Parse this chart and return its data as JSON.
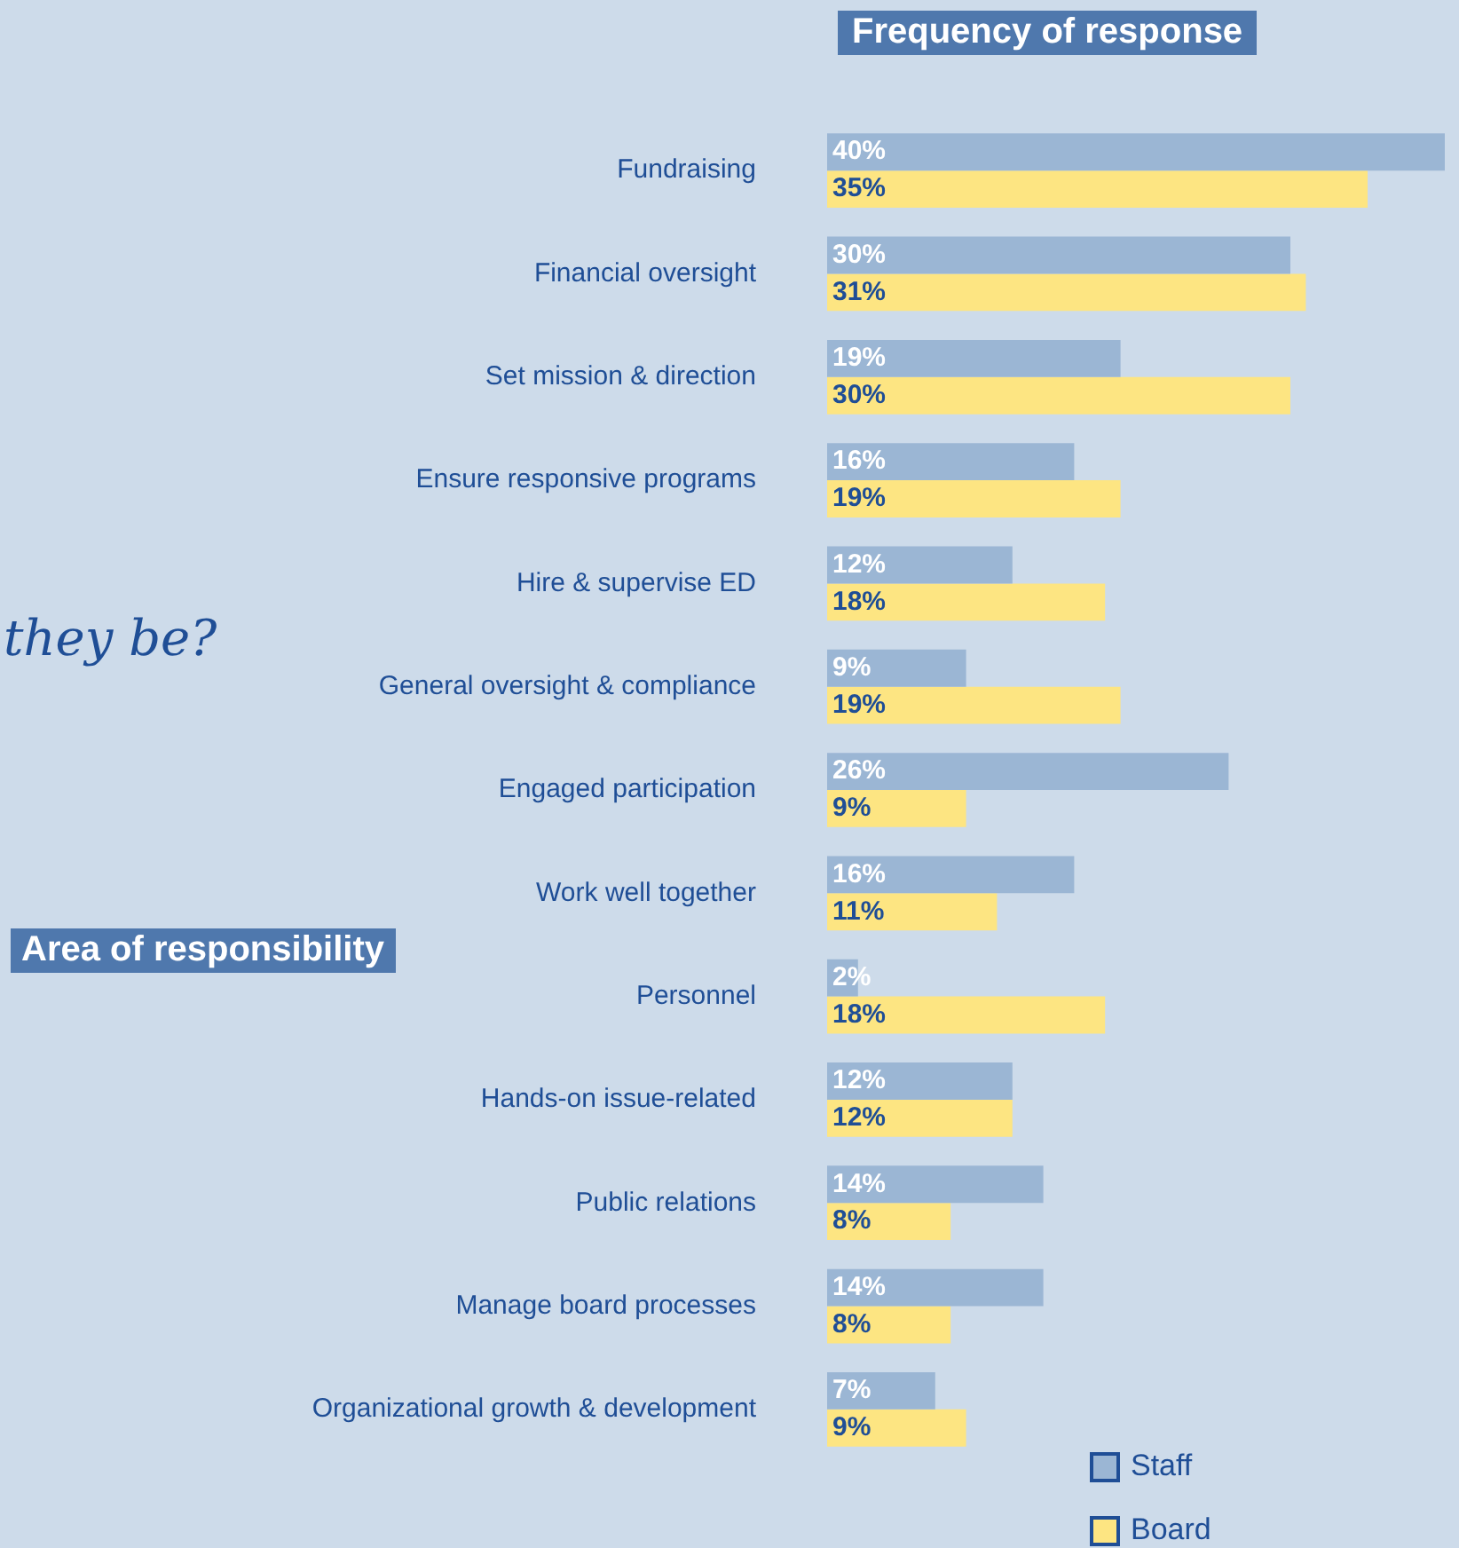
{
  "chart_data": {
    "type": "bar",
    "orientation": "horizontal",
    "title": "Frequency of response",
    "ylabel": "Area of responsibility",
    "annotations": [
      "they be?"
    ],
    "categories": [
      "Fundraising",
      "Financial oversight",
      "Set mission & direction",
      "Ensure responsive programs",
      "Hire & supervise ED",
      "General oversight & compliance",
      "Engaged participation",
      "Work well together",
      "Personnel",
      "Hands-on issue-related",
      "Public relations",
      "Manage board processes",
      "Organizational growth & development"
    ],
    "series": [
      {
        "name": "Staff",
        "color": "#9bb6d4",
        "values": [
          40,
          30,
          19,
          16,
          12,
          9,
          26,
          16,
          2,
          12,
          14,
          14,
          7
        ],
        "value_labels": [
          "40%",
          "30%",
          "19%",
          "16%",
          "12%",
          "9%",
          "26%",
          "16%",
          "2%",
          "12%",
          "14%",
          "14%",
          "7%"
        ]
      },
      {
        "name": "Board",
        "color": "#fde582",
        "values": [
          35,
          31,
          30,
          19,
          18,
          19,
          9,
          11,
          18,
          12,
          8,
          8,
          9
        ],
        "value_labels": [
          "35%",
          "31%",
          "30%",
          "19%",
          "18%",
          "19%",
          "9%",
          "11%",
          "18%",
          "12%",
          "8%",
          "8%",
          "9%"
        ]
      }
    ],
    "legend": "bottom right"
  }
}
